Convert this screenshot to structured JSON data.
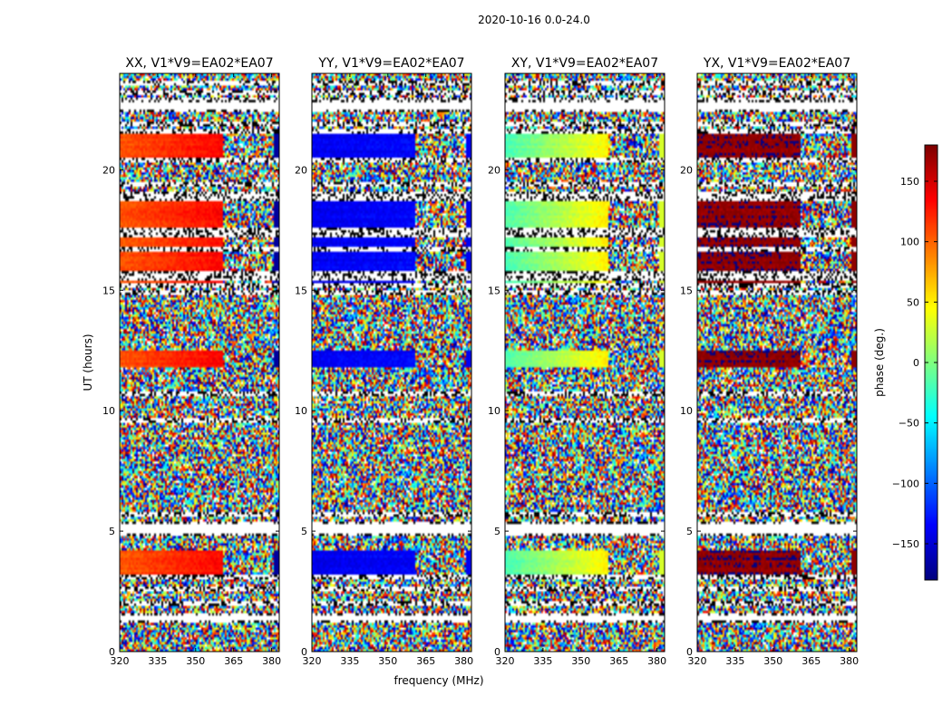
{
  "chart_data": {
    "type": "heatmap",
    "suptitle": "2020-10-16 0.0-24.0",
    "xlabel": "frequency (MHz)",
    "ylabel": "UT (hours)",
    "xlim": [
      320,
      383
    ],
    "ylim": [
      0,
      24
    ],
    "xticks": [
      320,
      335,
      350,
      365,
      380
    ],
    "yticks": [
      0,
      5,
      10,
      15,
      20
    ],
    "panels": [
      {
        "title": "XX, V1*V9=EA02*EA07",
        "coherent_phase_deg": 105,
        "phase_slope_deg": 30,
        "edge_phase_deg": -170
      },
      {
        "title": "YY, V1*V9=EA02*EA07",
        "coherent_phase_deg": -140,
        "phase_slope_deg": 5,
        "edge_phase_deg": -140
      },
      {
        "title": "XY, V1*V9=EA02*EA07",
        "coherent_phase_deg": -20,
        "phase_slope_deg": 70,
        "edge_phase_deg": 30
      },
      {
        "title": "YX, V1*V9=EA02*EA07",
        "coherent_phase_deg": 175,
        "phase_slope_deg": 0,
        "edge_phase_deg": 175
      }
    ],
    "colorbar": {
      "label": "phase (deg.)",
      "vmin": -180,
      "vmax": 180,
      "ticks": [
        150,
        100,
        50,
        0,
        -50,
        -100,
        -150
      ],
      "colormap": "jet"
    },
    "coherent_intervals_hours": [
      [
        15.1,
        18.7
      ],
      [
        20.5,
        21.6
      ],
      [
        11.8,
        12.5
      ],
      [
        3.0,
        4.2
      ]
    ],
    "coherent_freq_max_mhz": 361,
    "flagged_rows_hours": [
      1.3,
      1.5,
      2.0,
      2.6,
      3.1,
      4.9,
      5.1,
      5.3,
      5.7,
      9.6,
      10.7,
      14.9,
      15.2,
      15.5,
      15.7,
      16.7,
      17.3,
      17.5,
      18.8,
      19.0,
      19.4,
      20.4,
      21.6,
      21.9,
      22.5,
      22.9,
      23.2,
      23.6
    ],
    "blank_bands_hours": [
      [
        1.3,
        1.5
      ],
      [
        4.9,
        5.3
      ],
      [
        22.5,
        22.8
      ]
    ]
  }
}
